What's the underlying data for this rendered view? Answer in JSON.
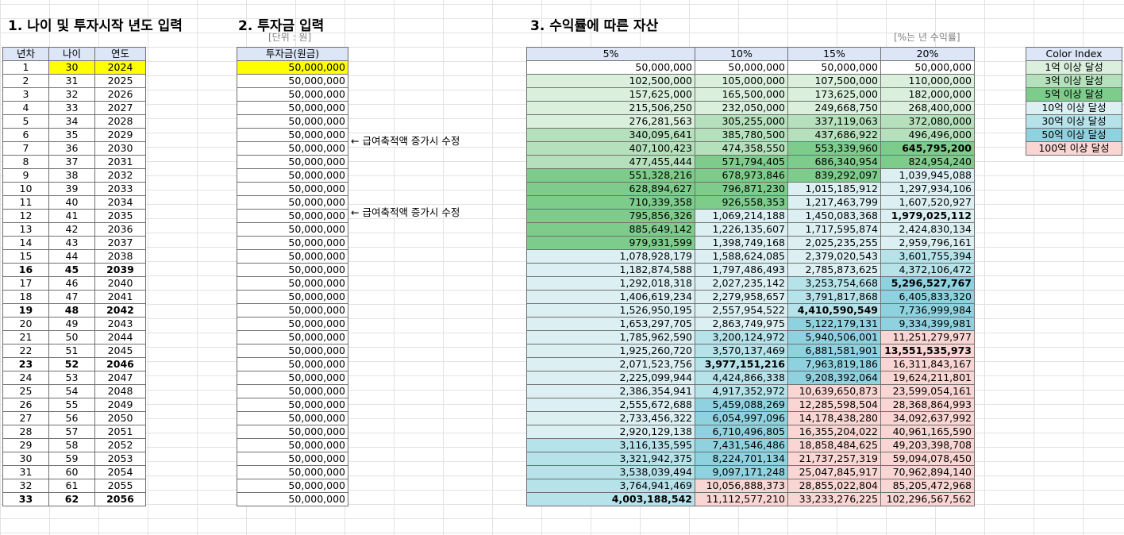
{
  "headings": {
    "sec1": "1. 나이 및 투자시작 년도 입력",
    "sec2": "2. 투자금 입력",
    "sec3": "3. 수익률에 따른 자산",
    "unit_won": "[단위 : 원]",
    "unit_rate": "[%는 년 수익률]"
  },
  "age_table": {
    "headers": [
      "년차",
      "나이",
      "연도"
    ],
    "rows": [
      [
        "1",
        "30",
        "2024"
      ],
      [
        "2",
        "31",
        "2025"
      ],
      [
        "3",
        "32",
        "2026"
      ],
      [
        "4",
        "33",
        "2027"
      ],
      [
        "5",
        "34",
        "2028"
      ],
      [
        "6",
        "35",
        "2029"
      ],
      [
        "7",
        "36",
        "2030"
      ],
      [
        "8",
        "37",
        "2031"
      ],
      [
        "9",
        "38",
        "2032"
      ],
      [
        "10",
        "39",
        "2033"
      ],
      [
        "11",
        "40",
        "2034"
      ],
      [
        "12",
        "41",
        "2035"
      ],
      [
        "13",
        "42",
        "2036"
      ],
      [
        "14",
        "43",
        "2037"
      ],
      [
        "15",
        "44",
        "2038"
      ],
      [
        "16",
        "45",
        "2039"
      ],
      [
        "17",
        "46",
        "2040"
      ],
      [
        "18",
        "47",
        "2041"
      ],
      [
        "19",
        "48",
        "2042"
      ],
      [
        "20",
        "49",
        "2043"
      ],
      [
        "21",
        "50",
        "2044"
      ],
      [
        "22",
        "51",
        "2045"
      ],
      [
        "23",
        "52",
        "2046"
      ],
      [
        "24",
        "53",
        "2047"
      ],
      [
        "25",
        "54",
        "2048"
      ],
      [
        "26",
        "55",
        "2049"
      ],
      [
        "27",
        "56",
        "2050"
      ],
      [
        "28",
        "57",
        "2051"
      ],
      [
        "29",
        "58",
        "2052"
      ],
      [
        "30",
        "59",
        "2053"
      ],
      [
        "31",
        "60",
        "2054"
      ],
      [
        "32",
        "61",
        "2055"
      ],
      [
        "33",
        "62",
        "2056"
      ]
    ],
    "bold_rows": [
      16,
      19,
      23,
      33
    ]
  },
  "invest_table": {
    "header": "투자금(원금)",
    "values": [
      "50,000,000",
      "50,000,000",
      "50,000,000",
      "50,000,000",
      "50,000,000",
      "50,000,000",
      "50,000,000",
      "50,000,000",
      "50,000,000",
      "50,000,000",
      "50,000,000",
      "50,000,000",
      "50,000,000",
      "50,000,000",
      "50,000,000",
      "50,000,000",
      "50,000,000",
      "50,000,000",
      "50,000,000",
      "50,000,000",
      "50,000,000",
      "50,000,000",
      "50,000,000",
      "50,000,000",
      "50,000,000",
      "50,000,000",
      "50,000,000",
      "50,000,000",
      "50,000,000",
      "50,000,000",
      "50,000,000",
      "50,000,000",
      "50,000,000"
    ],
    "notes": [
      {
        "row": 6,
        "text": "← 급여축적액 증가시 수정"
      },
      {
        "row": 11,
        "text": "← 급여축적액 증가시 수정"
      }
    ]
  },
  "asset_table": {
    "headers": [
      "5%",
      "10%",
      "15%",
      "20%"
    ],
    "rows": [
      [
        "50,000,000",
        "50,000,000",
        "50,000,000",
        "50,000,000"
      ],
      [
        "102,500,000",
        "105,000,000",
        "107,500,000",
        "110,000,000"
      ],
      [
        "157,625,000",
        "165,500,000",
        "173,625,000",
        "182,000,000"
      ],
      [
        "215,506,250",
        "232,050,000",
        "249,668,750",
        "268,400,000"
      ],
      [
        "276,281,563",
        "305,255,000",
        "337,119,063",
        "372,080,000"
      ],
      [
        "340,095,641",
        "385,780,500",
        "437,686,922",
        "496,496,000"
      ],
      [
        "407,100,423",
        "474,358,550",
        "553,339,960",
        "645,795,200"
      ],
      [
        "477,455,444",
        "571,794,405",
        "686,340,954",
        "824,954,240"
      ],
      [
        "551,328,216",
        "678,973,846",
        "839,292,097",
        "1,039,945,088"
      ],
      [
        "628,894,627",
        "796,871,230",
        "1,015,185,912",
        "1,297,934,106"
      ],
      [
        "710,339,358",
        "926,558,353",
        "1,217,463,799",
        "1,607,520,927"
      ],
      [
        "795,856,326",
        "1,069,214,188",
        "1,450,083,368",
        "1,979,025,112"
      ],
      [
        "885,649,142",
        "1,226,135,607",
        "1,717,595,874",
        "2,424,830,134"
      ],
      [
        "979,931,599",
        "1,398,749,168",
        "2,025,235,255",
        "2,959,796,161"
      ],
      [
        "1,078,928,179",
        "1,588,624,085",
        "2,379,020,543",
        "3,601,755,394"
      ],
      [
        "1,182,874,588",
        "1,797,486,493",
        "2,785,873,625",
        "4,372,106,472"
      ],
      [
        "1,292,018,318",
        "2,027,235,142",
        "3,253,754,668",
        "5,296,527,767"
      ],
      [
        "1,406,619,234",
        "2,279,958,657",
        "3,791,817,868",
        "6,405,833,320"
      ],
      [
        "1,526,950,195",
        "2,557,954,522",
        "4,410,590,549",
        "7,736,999,984"
      ],
      [
        "1,653,297,705",
        "2,863,749,975",
        "5,122,179,131",
        "9,334,399,981"
      ],
      [
        "1,785,962,590",
        "3,200,124,972",
        "5,940,506,001",
        "11,251,279,977"
      ],
      [
        "1,925,260,720",
        "3,570,137,469",
        "6,881,581,901",
        "13,551,535,973"
      ],
      [
        "2,071,523,756",
        "3,977,151,216",
        "7,963,819,186",
        "16,311,843,167"
      ],
      [
        "2,225,099,944",
        "4,424,866,338",
        "9,208,392,064",
        "19,624,211,801"
      ],
      [
        "2,386,354,941",
        "4,917,352,972",
        "10,639,650,873",
        "23,599,054,161"
      ],
      [
        "2,555,672,688",
        "5,459,088,269",
        "12,285,598,504",
        "28,368,864,993"
      ],
      [
        "2,733,456,322",
        "6,054,997,096",
        "14,178,438,280",
        "34,092,637,992"
      ],
      [
        "2,920,129,138",
        "6,710,496,805",
        "16,355,204,022",
        "40,961,165,590"
      ],
      [
        "3,116,135,595",
        "7,431,546,486",
        "18,858,484,625",
        "49,203,398,708"
      ],
      [
        "3,321,942,375",
        "8,224,701,134",
        "21,737,257,319",
        "59,094,078,450"
      ],
      [
        "3,538,039,494",
        "9,097,171,248",
        "25,047,845,917",
        "70,962,894,140"
      ],
      [
        "3,764,941,469",
        "10,056,888,373",
        "28,855,022,804",
        "85,205,472,968"
      ],
      [
        "4,003,188,542",
        "11,112,577,210",
        "33,233,276,225",
        "102,296,567,562"
      ]
    ],
    "bold_cells": [
      [
        7,
        3
      ],
      [
        12,
        3
      ],
      [
        17,
        3
      ],
      [
        19,
        2
      ],
      [
        22,
        3
      ],
      [
        23,
        1
      ],
      [
        33,
        0
      ]
    ]
  },
  "color_index": {
    "title": "Color Index",
    "items": [
      {
        "label": "1억 이상 달성",
        "color": "#daf0dd"
      },
      {
        "label": "3억 이상 달성",
        "color": "#b4e1bb"
      },
      {
        "label": "5억 이상 달성",
        "color": "#7dcc8b"
      },
      {
        "label": "10억 이상 달성",
        "color": "#dcf0f4"
      },
      {
        "label": "30억 이상 달성",
        "color": "#b6e2ea"
      },
      {
        "label": "50억 이상 달성",
        "color": "#8fd2df"
      },
      {
        "label": "100억 이상 달성",
        "color": "#f9d6d3"
      }
    ],
    "header_color": "#dce6f7"
  },
  "colors": {
    "highlight_yellow": "#ffff00",
    "header_blue": "#dce6f7",
    "grid_line": "#e2e2e2"
  }
}
